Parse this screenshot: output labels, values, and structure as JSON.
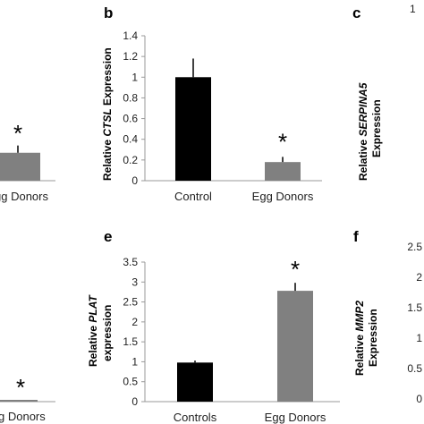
{
  "chart_data": [
    {
      "panel": "",
      "type": "bar",
      "categories": [
        "",
        "gg Donors"
      ],
      "values": [
        null,
        0.27
      ],
      "errors": [
        null,
        0.07
      ],
      "annotations": [
        "",
        "*"
      ],
      "colors": [
        "#000000",
        "#808080"
      ]
    },
    {
      "panel": "b",
      "type": "bar",
      "categories": [
        "Control",
        "Egg Donors"
      ],
      "values": [
        1.0,
        0.18
      ],
      "errors": [
        0.18,
        0.05
      ],
      "annotations": [
        "",
        "*"
      ],
      "ylabel_pre": "Relative ",
      "ylabel_gene": "CTSL",
      "ylabel_post": " Expression",
      "ylim": [
        0,
        1.4
      ],
      "yticks": [
        "0",
        "0.2",
        "0.4",
        "0.6",
        "0.8",
        "1",
        "1.2",
        "1.4"
      ],
      "colors": [
        "#000000",
        "#808080"
      ]
    },
    {
      "panel": "c",
      "type": "bar",
      "ylabel_line1": "Relative SERPINA5",
      "ylabel_line2": "Expression",
      "yticks_visible": [
        "1"
      ]
    },
    {
      "panel": "",
      "type": "bar",
      "categories": [
        "",
        "g Donors"
      ],
      "values": [
        null,
        0.01
      ],
      "annotations": [
        "",
        "*"
      ],
      "colors": [
        "#000000",
        "#808080"
      ]
    },
    {
      "panel": "e",
      "type": "bar",
      "categories": [
        "Controls",
        "Egg Donors"
      ],
      "values": [
        0.98,
        2.78
      ],
      "errors": [
        0.05,
        0.2
      ],
      "annotations": [
        "",
        "*"
      ],
      "ylabel_line1": "Relative PLAT",
      "ylabel_line2": "expression",
      "ylim": [
        0,
        3.5
      ],
      "yticks": [
        "0",
        "0.5",
        "1",
        "1.5",
        "2",
        "2.5",
        "3",
        "3.5"
      ],
      "colors": [
        "#000000",
        "#808080"
      ]
    },
    {
      "panel": "f",
      "type": "bar",
      "ylabel_line1": "Relative MMP2",
      "ylabel_line2": "Expression",
      "yticks_visible": [
        "2.5",
        "2",
        "1.5",
        "1",
        "0.5",
        "0"
      ]
    }
  ]
}
